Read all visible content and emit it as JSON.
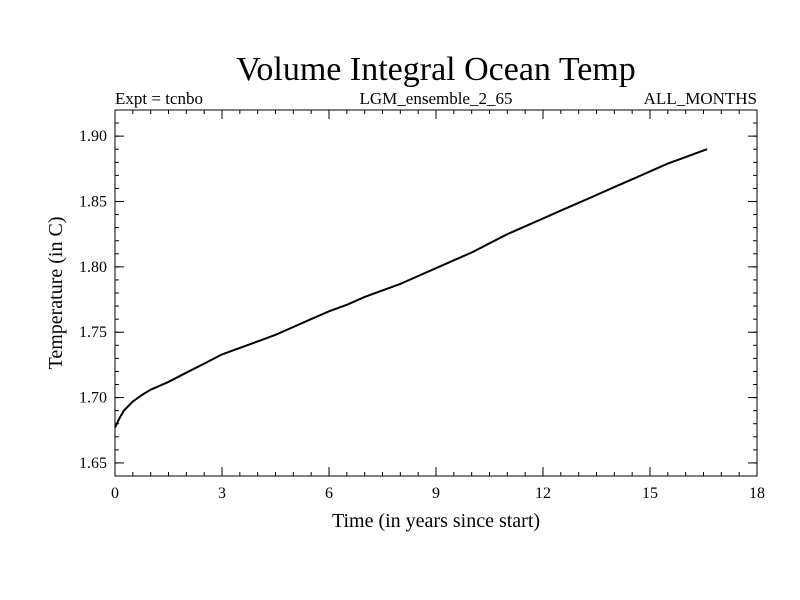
{
  "chart_data": {
    "type": "line",
    "title": "Volume Integral Ocean Temp",
    "subtitle_left": "Expt = tcnbo",
    "subtitle_center": "LGM_ensemble_2_65",
    "subtitle_right": "ALL_MONTHS",
    "xlabel": "Time (in years since start)",
    "ylabel": "Temperature (in C)",
    "xlim": [
      0,
      18
    ],
    "ylim": [
      1.64,
      1.92
    ],
    "xticks": [
      0,
      3,
      6,
      9,
      12,
      15,
      18
    ],
    "xtick_labels": [
      "0",
      "3",
      "6",
      "9",
      "12",
      "15",
      "18"
    ],
    "yticks": [
      1.65,
      1.7,
      1.75,
      1.8,
      1.85,
      1.9
    ],
    "ytick_labels": [
      "1.65",
      "1.70",
      "1.75",
      "1.80",
      "1.85",
      "1.90"
    ],
    "x_minor_step": 0.5,
    "y_minor_step": 0.01,
    "grid": false,
    "series": [
      {
        "name": "Volume integral ocean temperature",
        "color": "#000000",
        "x": [
          0,
          0.1,
          0.25,
          0.5,
          0.75,
          1.0,
          1.5,
          2.0,
          2.5,
          3.0,
          3.5,
          4.0,
          4.5,
          5.0,
          5.5,
          6.0,
          6.5,
          7.0,
          7.5,
          8.0,
          8.5,
          9.0,
          9.5,
          10.0,
          10.5,
          11.0,
          11.5,
          12.0,
          12.5,
          13.0,
          13.5,
          14.0,
          14.5,
          15.0,
          15.5,
          16.0,
          16.3,
          16.6
        ],
        "values": [
          1.677,
          1.683,
          1.69,
          1.697,
          1.702,
          1.706,
          1.712,
          1.719,
          1.726,
          1.733,
          1.738,
          1.743,
          1.748,
          1.754,
          1.76,
          1.766,
          1.771,
          1.777,
          1.782,
          1.787,
          1.793,
          1.799,
          1.805,
          1.811,
          1.818,
          1.825,
          1.831,
          1.837,
          1.843,
          1.849,
          1.855,
          1.861,
          1.867,
          1.873,
          1.879,
          1.884,
          1.887,
          1.89
        ]
      }
    ]
  }
}
